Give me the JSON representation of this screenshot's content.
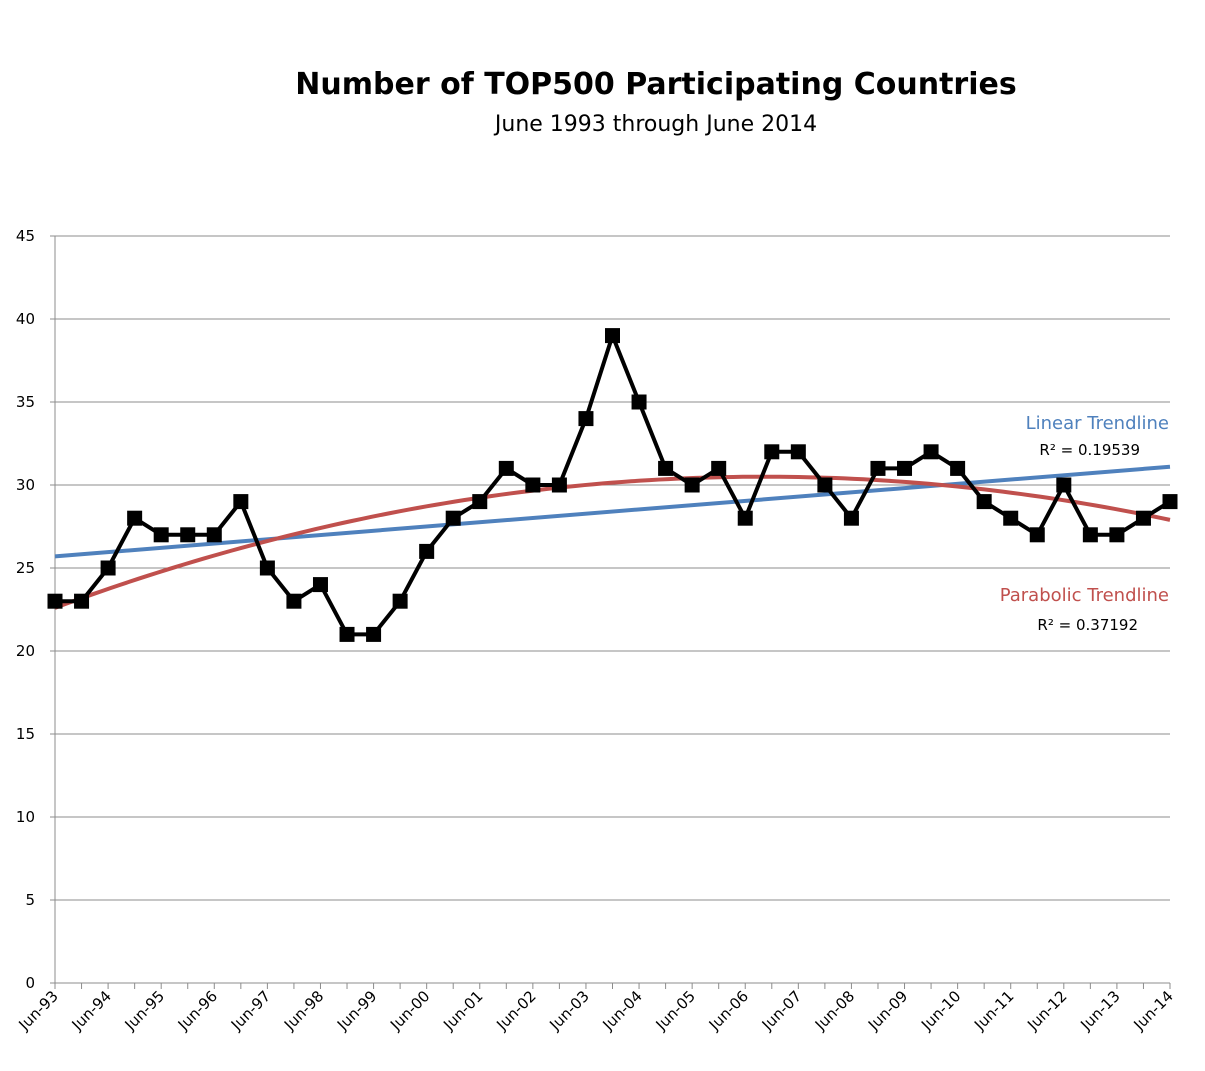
{
  "chart_data": {
    "type": "line",
    "title": "Number of TOP500 Participating Countries",
    "subtitle": "June 1993 through June 2014",
    "ylim": [
      0,
      45
    ],
    "y_ticks": [
      0,
      5,
      10,
      15,
      20,
      25,
      30,
      35,
      40,
      45
    ],
    "x_tick_labels": [
      "Jun-93",
      "Jun-94",
      "Jun-95",
      "Jun-96",
      "Jun-97",
      "Jun-98",
      "Jun-99",
      "Jun-00",
      "Jun-01",
      "Jun-02",
      "Jun-03",
      "Jun-04",
      "Jun-05",
      "Jun-06",
      "Jun-07",
      "Jun-08",
      "Jun-09",
      "Jun-10",
      "Jun-11",
      "Jun-12",
      "Jun-13",
      "Jun-14"
    ],
    "grid": true,
    "legend": "none",
    "series": [
      {
        "color": "#000000",
        "marker": "square",
        "values": [
          23,
          23,
          25,
          28,
          27,
          27,
          27,
          29,
          25,
          23,
          24,
          21,
          21,
          23,
          26,
          28,
          29,
          31,
          30,
          30,
          34,
          39,
          35,
          31,
          30,
          31,
          28,
          32,
          32,
          30,
          28,
          31,
          31,
          32,
          31,
          29,
          28,
          27,
          30,
          27,
          27,
          28,
          29
        ]
      }
    ],
    "trendlines": [
      {
        "kind": "linear",
        "label": "Linear Trendline",
        "r2_text": "R² = 0.19539",
        "color": "#4f81bd",
        "start_value": 25.7,
        "end_value": 31.1
      },
      {
        "kind": "parabolic",
        "label": "Parabolic Trendline",
        "r2_text": "R² = 0.37192",
        "color": "#c0504d",
        "start_value": 22.6,
        "peak_value": 30.5,
        "end_value": 27.9
      }
    ]
  }
}
